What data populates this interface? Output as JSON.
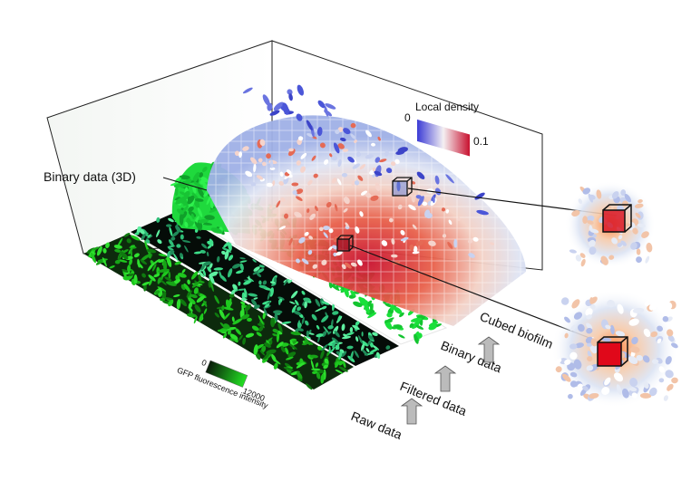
{
  "annotation": "Binary data (3D)",
  "density_colorbar": {
    "title": "Local density",
    "min_label": "0",
    "max_label": "0.1",
    "color_low": "#3b3bd6",
    "color_mid": "#f4f0f2",
    "color_high": "#c8102e"
  },
  "gfp_colorbar": {
    "title": "GFP fluorescence intensity",
    "min_label": "0",
    "max_label": "12000",
    "color_low": "#0a1a0a",
    "color_high": "#22e022"
  },
  "processing_steps": [
    {
      "label": "Raw data"
    },
    {
      "label": "Filtered data"
    },
    {
      "label": "Binary data"
    },
    {
      "label": "Cubed biofilm"
    }
  ],
  "colors": {
    "raw_green": "#1ec81e",
    "filtered_teal": "#3ee08a",
    "binary_green": "#19e03a",
    "cube_outline": "#111111"
  }
}
